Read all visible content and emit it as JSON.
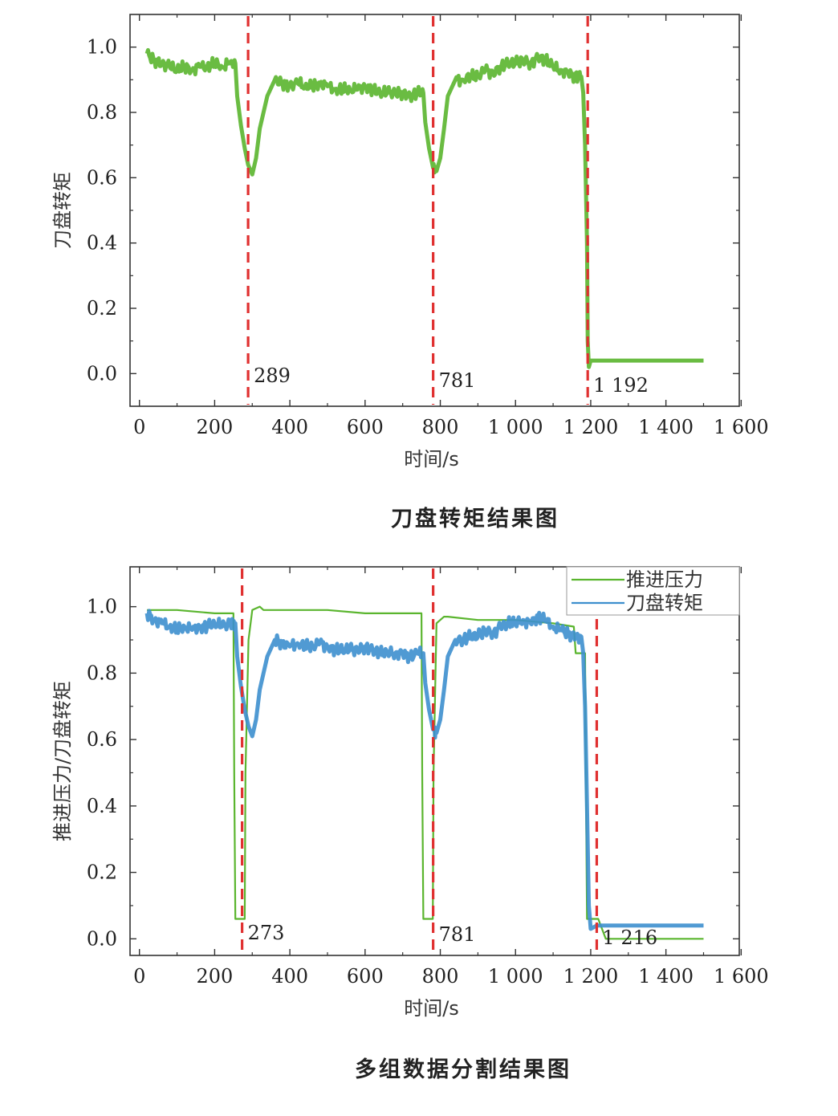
{
  "chart_data": [
    {
      "type": "line",
      "title": "",
      "xlabel": "时间/s",
      "ylabel": "刀盘转矩",
      "xlim": [
        -25,
        1595
      ],
      "ylim": [
        -0.1,
        1.1
      ],
      "xticks": [
        0,
        200,
        400,
        600,
        800,
        1000,
        1200,
        1400,
        1600
      ],
      "xtick_labels": [
        "0",
        "200",
        "400",
        "600",
        "800",
        "1 000",
        "1 200",
        "1 400",
        "1 600"
      ],
      "yticks": [
        0.0,
        0.2,
        0.4,
        0.6,
        0.8,
        1.0
      ],
      "ytick_labels": [
        "0.0",
        "0.2",
        "0.4",
        "0.6",
        "0.8",
        "1.0"
      ],
      "grid": false,
      "legend": null,
      "series": [
        {
          "name": "",
          "color": "#5ab52e",
          "x": [
            20,
            40,
            60,
            80,
            100,
            120,
            140,
            160,
            180,
            200,
            220,
            240,
            255,
            260,
            270,
            280,
            289,
            300,
            310,
            320,
            340,
            360,
            380,
            400,
            420,
            440,
            460,
            480,
            500,
            520,
            540,
            560,
            580,
            600,
            620,
            640,
            660,
            680,
            700,
            720,
            740,
            755,
            760,
            770,
            781,
            790,
            800,
            810,
            820,
            840,
            860,
            880,
            900,
            920,
            940,
            960,
            980,
            1000,
            1020,
            1040,
            1060,
            1080,
            1100,
            1120,
            1140,
            1160,
            1175,
            1180,
            1185,
            1190,
            1192,
            1195,
            1200,
            1300,
            1400,
            1500
          ],
          "y": [
            0.98,
            0.96,
            0.95,
            0.94,
            0.93,
            0.94,
            0.93,
            0.94,
            0.94,
            0.95,
            0.94,
            0.95,
            0.95,
            0.85,
            0.76,
            0.69,
            0.64,
            0.61,
            0.66,
            0.75,
            0.85,
            0.9,
            0.89,
            0.88,
            0.89,
            0.88,
            0.88,
            0.89,
            0.88,
            0.87,
            0.87,
            0.87,
            0.87,
            0.88,
            0.87,
            0.86,
            0.86,
            0.86,
            0.86,
            0.85,
            0.86,
            0.86,
            0.77,
            0.69,
            0.63,
            0.62,
            0.66,
            0.75,
            0.85,
            0.9,
            0.9,
            0.91,
            0.91,
            0.93,
            0.92,
            0.94,
            0.95,
            0.95,
            0.96,
            0.95,
            0.97,
            0.96,
            0.94,
            0.93,
            0.92,
            0.91,
            0.91,
            0.86,
            0.7,
            0.4,
            0.1,
            0.02,
            0.04,
            0.04,
            0.04,
            0.04
          ]
        }
      ],
      "split_markers": [
        {
          "x": 289,
          "label": "289"
        },
        {
          "x": 781,
          "label": "781"
        },
        {
          "x": 1192,
          "label": "1 192"
        }
      ],
      "marker_color": "#e03030"
    },
    {
      "type": "line",
      "title": "",
      "xlabel": "时间/s",
      "ylabel": "推进压力/刀盘转矩",
      "xlim": [
        -25,
        1595
      ],
      "ylim": [
        -0.05,
        1.12
      ],
      "xticks": [
        0,
        200,
        400,
        600,
        800,
        1000,
        1200,
        1400,
        1600
      ],
      "xtick_labels": [
        "0",
        "200",
        "400",
        "600",
        "800",
        "1 000",
        "1 200",
        "1 400",
        "1 600"
      ],
      "yticks": [
        0.0,
        0.2,
        0.4,
        0.6,
        0.8,
        1.0
      ],
      "ytick_labels": [
        "0.0",
        "0.2",
        "0.4",
        "0.6",
        "0.8",
        "1.0"
      ],
      "grid": false,
      "legend": "top-right",
      "series": [
        {
          "name": "推进压力",
          "color": "#5ab52e",
          "x": [
            20,
            100,
            200,
            250,
            252,
            255,
            280,
            282,
            290,
            300,
            320,
            330,
            400,
            500,
            600,
            700,
            750,
            752,
            755,
            780,
            782,
            790,
            810,
            820,
            900,
            1000,
            1100,
            1155,
            1160,
            1185,
            1187,
            1190,
            1220,
            1240,
            1300,
            1400,
            1500
          ],
          "y": [
            0.99,
            0.99,
            0.98,
            0.98,
            0.5,
            0.06,
            0.06,
            0.5,
            0.9,
            0.99,
            1.0,
            0.99,
            0.99,
            0.99,
            0.98,
            0.98,
            0.98,
            0.5,
            0.06,
            0.06,
            0.5,
            0.95,
            0.97,
            0.97,
            0.96,
            0.96,
            0.95,
            0.94,
            0.86,
            0.86,
            0.5,
            0.06,
            0.06,
            0.0,
            0.0,
            0.0,
            0.0
          ]
        },
        {
          "name": "刀盘转矩",
          "color": "#3d8fce",
          "x": [
            20,
            40,
            60,
            80,
            100,
            120,
            140,
            160,
            180,
            200,
            220,
            240,
            255,
            260,
            270,
            280,
            290,
            300,
            310,
            320,
            340,
            360,
            380,
            400,
            420,
            440,
            460,
            480,
            500,
            520,
            540,
            560,
            580,
            600,
            620,
            640,
            660,
            680,
            700,
            720,
            740,
            755,
            760,
            770,
            781,
            790,
            800,
            810,
            820,
            840,
            860,
            880,
            900,
            920,
            940,
            960,
            980,
            1000,
            1020,
            1040,
            1060,
            1080,
            1100,
            1120,
            1140,
            1160,
            1175,
            1180,
            1185,
            1190,
            1195,
            1200,
            1216,
            1300,
            1400,
            1500
          ],
          "y": [
            0.98,
            0.96,
            0.95,
            0.94,
            0.93,
            0.94,
            0.93,
            0.94,
            0.94,
            0.95,
            0.94,
            0.95,
            0.95,
            0.85,
            0.76,
            0.69,
            0.64,
            0.61,
            0.66,
            0.75,
            0.85,
            0.9,
            0.89,
            0.88,
            0.89,
            0.88,
            0.88,
            0.89,
            0.88,
            0.87,
            0.87,
            0.87,
            0.87,
            0.88,
            0.87,
            0.86,
            0.86,
            0.86,
            0.86,
            0.85,
            0.86,
            0.86,
            0.77,
            0.69,
            0.63,
            0.62,
            0.66,
            0.75,
            0.85,
            0.9,
            0.9,
            0.91,
            0.91,
            0.93,
            0.92,
            0.94,
            0.95,
            0.95,
            0.96,
            0.95,
            0.97,
            0.96,
            0.94,
            0.93,
            0.92,
            0.91,
            0.91,
            0.86,
            0.7,
            0.4,
            0.1,
            0.03,
            0.04,
            0.04,
            0.04,
            0.04
          ]
        }
      ],
      "split_markers": [
        {
          "x": 273,
          "label": "273"
        },
        {
          "x": 781,
          "label": "781"
        },
        {
          "x": 1216,
          "label": "1 216"
        }
      ],
      "marker_color": "#e03030"
    }
  ],
  "captions": {
    "top": "刀盘转矩结果图",
    "bottom": "多组数据分割结果图"
  }
}
